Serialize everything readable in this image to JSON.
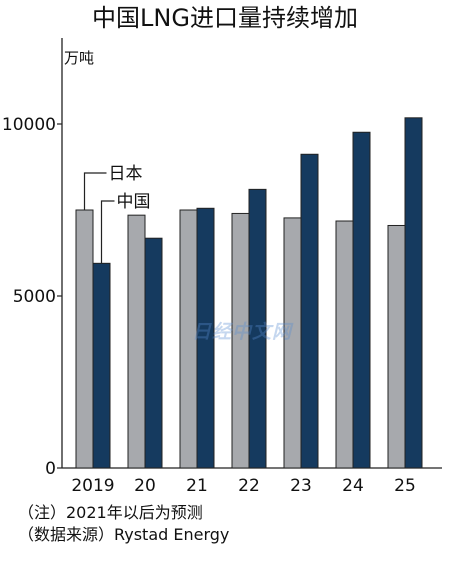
{
  "chart_data": {
    "type": "bar",
    "title": "中国LNG进口量持续增加",
    "ylabel": "万吨",
    "categories": [
      "2019",
      "20",
      "21",
      "22",
      "23",
      "24",
      "25"
    ],
    "ylim": [
      0,
      12500
    ],
    "yticks": [
      "0",
      "5000",
      "10000"
    ],
    "series": [
      {
        "name": "日本",
        "color": "#a7a9ad",
        "values": [
          7500,
          7350,
          7500,
          7400,
          7270,
          7180,
          7050
        ]
      },
      {
        "name": "中国",
        "color": "#153a5f",
        "values": [
          5950,
          6680,
          7550,
          8100,
          9120,
          9760,
          10180
        ]
      }
    ],
    "legend_placement": "left, leader lines to first category bars",
    "grid": false
  },
  "notes": {
    "note1": "（注）2021年以后为预测",
    "note2": "（数据来源）Rystad Energy"
  },
  "watermark": "日经中文网"
}
